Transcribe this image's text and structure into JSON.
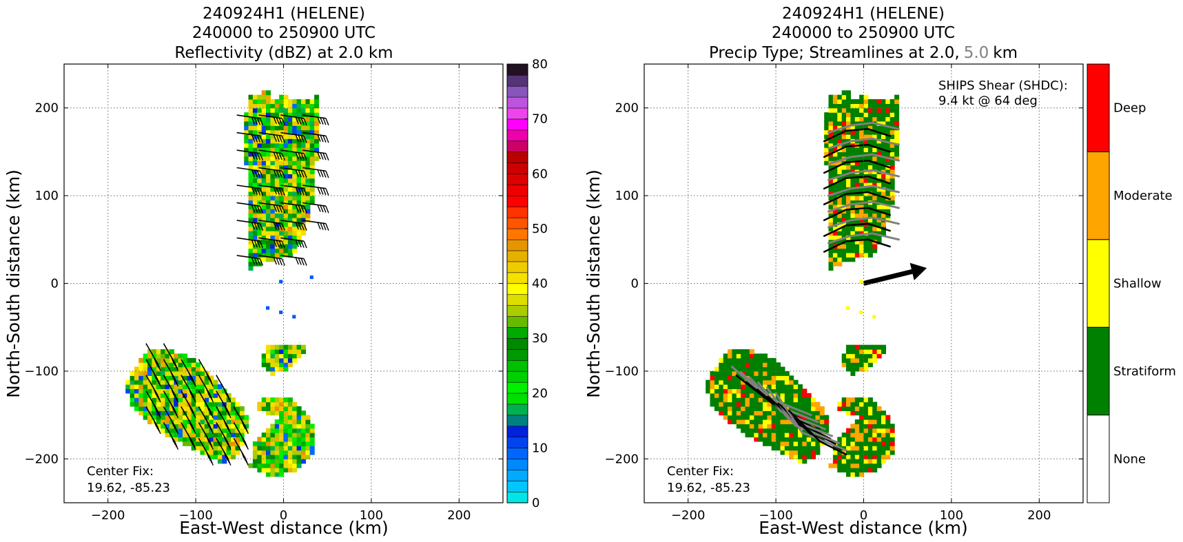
{
  "figure": {
    "background": "#ffffff",
    "grid_color": "#666666"
  },
  "chart_data": [
    {
      "type": "heatmap",
      "title_lines": [
        "240924H1 (HELENE)",
        "240000 to 250900 UTC",
        "Reflectivity (dBZ) at 2.0 km"
      ],
      "xlabel": "East-West distance (km)",
      "ylabel": "North-South distance (km)",
      "xlim": [
        -250,
        250
      ],
      "ylim": [
        -250,
        250
      ],
      "xticks": [
        -200,
        -100,
        0,
        100,
        200
      ],
      "yticks": [
        -200,
        -100,
        0,
        100,
        200
      ],
      "xtick_labels": [
        "−200",
        "−100",
        "0",
        "100",
        "200"
      ],
      "ytick_labels": [
        "−200",
        "−100",
        "0",
        "100",
        "200"
      ],
      "grid": true,
      "annotation_lines": [
        "Center Fix:",
        "19.62, -85.23"
      ],
      "colorbar": {
        "vmin": 0,
        "vmax": 80,
        "step": 2.5,
        "ticks": [
          0,
          10,
          20,
          30,
          40,
          50,
          60,
          70,
          80
        ],
        "tick_labels": [
          "0",
          "10",
          "20",
          "30",
          "40",
          "50",
          "60",
          "70",
          "80"
        ],
        "colors": [
          "#00e6e6",
          "#00c8ff",
          "#00aaff",
          "#0088ff",
          "#0066ff",
          "#0044ee",
          "#0022dd",
          "#008080",
          "#00b050",
          "#00e000",
          "#00f000",
          "#00d000",
          "#00c000",
          "#009900",
          "#008800",
          "#00aa00",
          "#66bb00",
          "#aacc00",
          "#dddd00",
          "#ffff00",
          "#f5e000",
          "#eecc00",
          "#e6b000",
          "#e69500",
          "#ff7700",
          "#ff5500",
          "#ff3300",
          "#ff0000",
          "#ee0000",
          "#dd0000",
          "#cc0000",
          "#bb0000",
          "#cc0066",
          "#ee00aa",
          "#ff00ff",
          "#ee44ee",
          "#bb55dd",
          "#8855bb",
          "#553377",
          "#221122"
        ]
      },
      "wind_barbs": true,
      "series": []
    },
    {
      "type": "heatmap",
      "title_lines": [
        "240924H1 (HELENE)",
        "240000 to 250900 UTC",
        "Precip Type; Streamlines at 2.0,",
        "5.0",
        "km"
      ],
      "xlabel": "East-West distance (km)",
      "ylabel": "North-South distance (km)",
      "xlim": [
        -250,
        250
      ],
      "ylim": [
        -250,
        250
      ],
      "xticks": [
        -200,
        -100,
        0,
        100,
        200
      ],
      "yticks": [
        -200,
        -100,
        0,
        100,
        200
      ],
      "xtick_labels": [
        "−200",
        "−100",
        "0",
        "100",
        "200"
      ],
      "ytick_labels": [
        "−200",
        "−100",
        "0",
        "100",
        "200"
      ],
      "grid": true,
      "annotation_lines": [
        "Center Fix:",
        "19.62, -85.23"
      ],
      "shear_lines": [
        "SHIPS Shear (SHDC):",
        "9.4 kt @ 64 deg"
      ],
      "shear": {
        "speed_kt": 9.4,
        "direction_deg": 64
      },
      "colorbar": {
        "categories": [
          "None",
          "Stratiform",
          "Shallow",
          "Moderate",
          "Deep"
        ],
        "colors": [
          "#ffffff",
          "#008000",
          "#ffff00",
          "#ffa500",
          "#ff0000"
        ]
      },
      "streamline_colors": {
        "level_2km": "#000000",
        "level_5km": "#808080"
      },
      "series": [
        {
          "name": "2.0",
          "color": "#000000"
        },
        {
          "name": "5.0",
          "color": "#808080"
        }
      ]
    }
  ]
}
